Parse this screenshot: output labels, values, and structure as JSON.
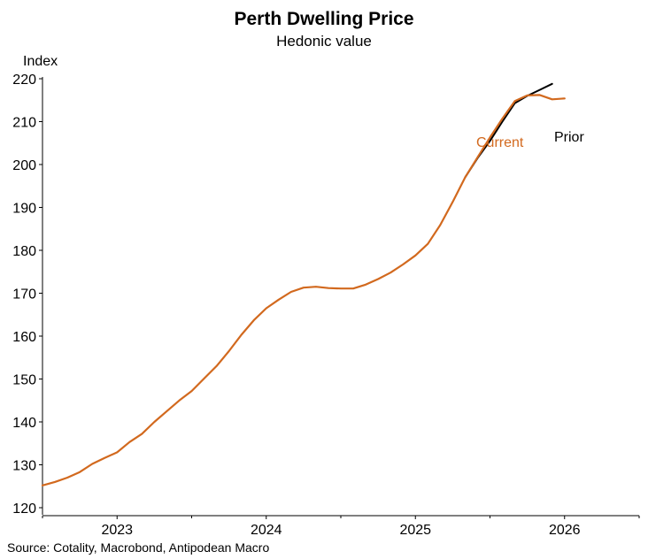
{
  "chart_data": {
    "type": "line",
    "title": "Perth Dwelling Price",
    "subtitle": "Hedonic value",
    "ylabel": "Index",
    "xlabel": "",
    "ylim": [
      120,
      220
    ],
    "yticks": [
      120,
      130,
      140,
      150,
      160,
      170,
      180,
      190,
      200,
      210,
      220
    ],
    "xlim": [
      "2022-07",
      "2026-07"
    ],
    "xtick_labels": [
      "2023",
      "2024",
      "2025",
      "2026"
    ],
    "grid": false,
    "colors": {
      "current": "#d2691e",
      "prior": "#000000"
    },
    "series": [
      {
        "name": "Current",
        "x": [
          "2022-07",
          "2022-08",
          "2022-09",
          "2022-10",
          "2022-11",
          "2022-12",
          "2023-01",
          "2023-02",
          "2023-03",
          "2023-04",
          "2023-05",
          "2023-06",
          "2023-07",
          "2023-08",
          "2023-09",
          "2023-10",
          "2023-11",
          "2023-12",
          "2024-01",
          "2024-02",
          "2024-03",
          "2024-04",
          "2024-05",
          "2024-06",
          "2024-07",
          "2024-08",
          "2024-09",
          "2024-10",
          "2024-11",
          "2024-12",
          "2025-01",
          "2025-02",
          "2025-03",
          "2025-04",
          "2025-05",
          "2025-06",
          "2025-07",
          "2025-08",
          "2025-09",
          "2025-10",
          "2025-11",
          "2025-12",
          "2026-01"
        ],
        "values": [
          125.2,
          126.0,
          127.0,
          128.3,
          130.2,
          131.6,
          132.9,
          135.3,
          137.2,
          140.0,
          142.5,
          145.0,
          147.2,
          150.1,
          153.0,
          156.5,
          160.3,
          163.7,
          166.5,
          168.5,
          170.3,
          171.3,
          171.5,
          171.2,
          171.1,
          171.1,
          172.0,
          173.3,
          174.8,
          176.7,
          178.8,
          181.5,
          185.9,
          191.3,
          197.0,
          201.7,
          206.3,
          210.7,
          214.8,
          216.1,
          216.2,
          215.2,
          215.4
        ]
      },
      {
        "name": "Prior",
        "x": [
          "2025-05",
          "2025-06",
          "2025-07",
          "2025-08",
          "2025-09",
          "2025-10",
          "2025-11",
          "2025-12"
        ],
        "values": [
          197.0,
          201.5,
          205.5,
          210.0,
          214.3,
          216.0,
          217.4,
          218.8
        ]
      }
    ]
  },
  "source": "Source: Cotality, Macrobond, Antipodean Macro"
}
